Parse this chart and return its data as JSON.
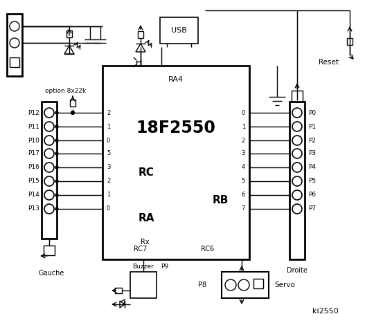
{
  "bg_color": "#ffffff",
  "line_color": "#000000",
  "chip_label": "18F2550",
  "chip_sublabel": "RA4",
  "rc_label": "RC",
  "ra_label": "RA",
  "rb_label": "RB",
  "rc_left_nums": [
    "2",
    "1",
    "0",
    "5",
    "3",
    "2",
    "1",
    "0"
  ],
  "rb_right_nums": [
    "0",
    "1",
    "2",
    "3",
    "4",
    "5",
    "6",
    "7"
  ],
  "left_labels": [
    "P12",
    "P11",
    "P10",
    "P17",
    "P16",
    "P15",
    "P14",
    "P13"
  ],
  "right_labels": [
    "P0",
    "P1",
    "P2",
    "P3",
    "P4",
    "P5",
    "P6",
    "P7"
  ],
  "gauche_label": "Gauche",
  "droite_label": "Droite",
  "usb_label": "USB",
  "reset_label": "Reset",
  "option_label": "option 8x22k",
  "rx_label": "Rx",
  "rc7_label": "RC7",
  "rc6_label": "RC6",
  "buzzer_label": "Buzzer",
  "p9_label": "P9",
  "p8_label": "P8",
  "servo_label": "Servo",
  "ki_label": "ki2550"
}
